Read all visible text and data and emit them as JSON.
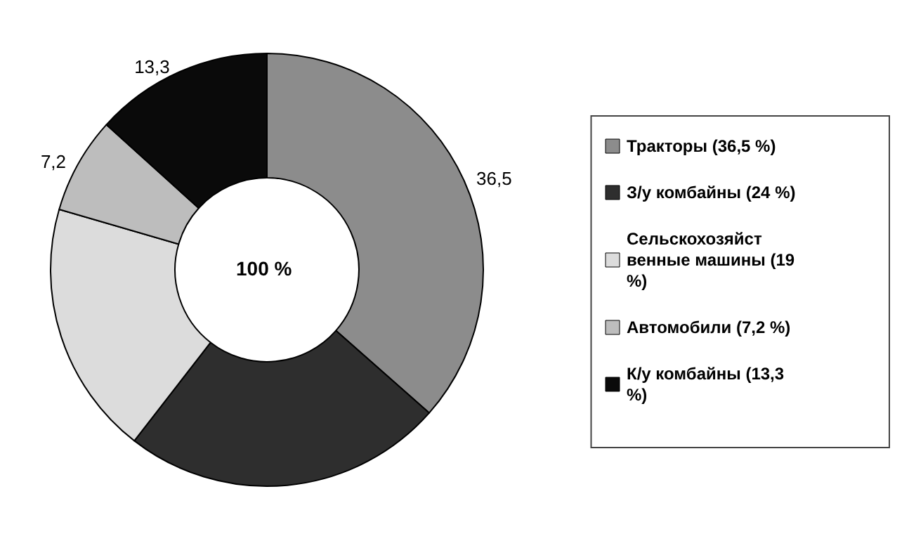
{
  "chart_data": {
    "type": "donut",
    "categories": [
      "Тракторы (36,5 %)",
      "З/у комбайны (24 %)",
      "Сельскохозяйственные машины (19 %)",
      "Автомобили (7,2 %)",
      "К/у комбайны (13,3 %)"
    ],
    "values": [
      36.5,
      24,
      19,
      7.2,
      13.3
    ],
    "colors": [
      "#8c8c8c",
      "#2e2e2e",
      "#dcdcdc",
      "#bdbdbd",
      "#0a0a0a"
    ],
    "value_labels": [
      "36,5",
      null,
      null,
      "7,2",
      "13,3"
    ],
    "annotations": [
      "100 %"
    ],
    "legend": "right"
  }
}
